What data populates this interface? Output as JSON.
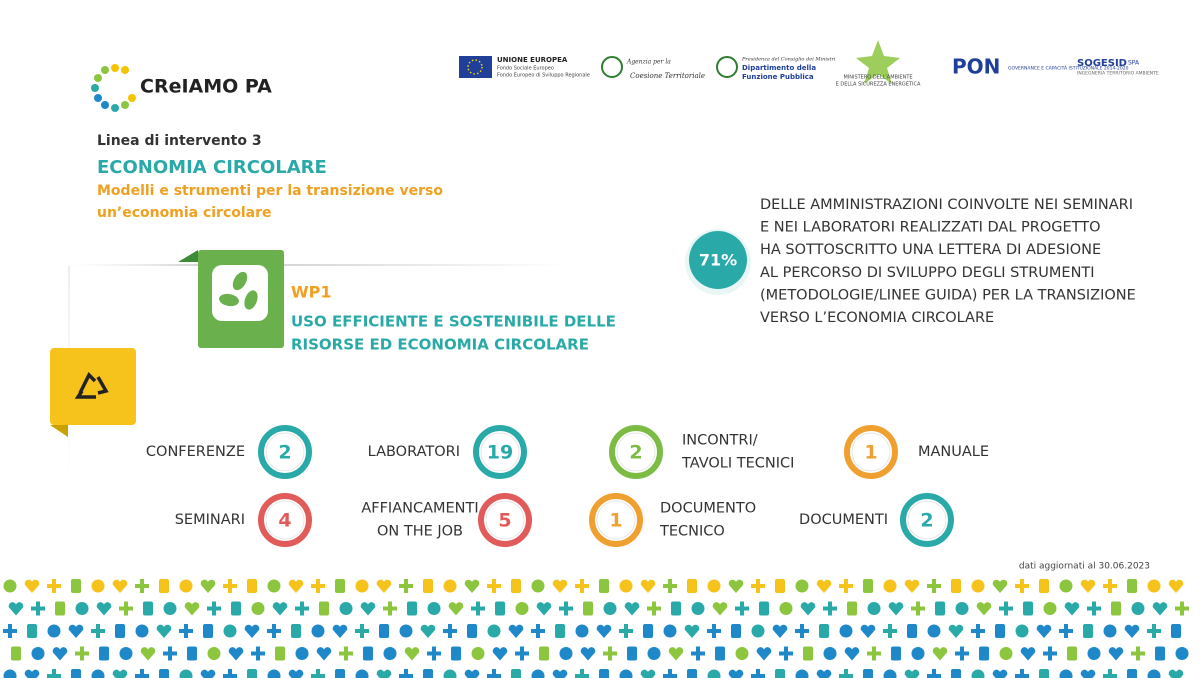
{
  "brand": {
    "name": "CReIAMO PA"
  },
  "logos": {
    "eu_title": "UNIONE EUROPEA",
    "eu_line1": "Fondo Sociale Europeo",
    "eu_line2": "Fondo Europeo di Sviluppo Regionale",
    "agency_line1": "Agenzia per la",
    "agency_line2": "Coesione Territoriale",
    "dfp_line1": "Presidenza del Consiglio dei Ministri",
    "dfp_line2": "Dipartimento della",
    "dfp_line3": "Funzione Pubblica",
    "mase_line1": "MINISTERO DELL'AMBIENTE",
    "mase_line2": "E DELLA SICUREZZA ENERGETICA",
    "pon": "PON",
    "pon_sub": "GOVERNANCE E CAPACITÀ ISTITUZIONALE 2014-2020",
    "sogesid": "SOGESID",
    "sogesid_spa": "SPA",
    "sogesid_sub": "INGEGNERIA TERRITORIO AMBIENTE"
  },
  "header": {
    "line": "Linea di intervento 3",
    "title": "ECONOMIA CIRCOLARE",
    "subtitle": [
      "Modelli e strumenti per la transizione verso",
      "un’economia circolare"
    ]
  },
  "work_package": {
    "code": "WP1",
    "title": [
      "USO EFFICIENTE E SOSTENIBILE DELLE",
      "RISORSE ED ECONOMIA CIRCOLARE"
    ]
  },
  "highlight": {
    "value": "71%",
    "text": [
      "DELLE AMMINISTRAZIONI COINVOLTE NEI SEMINARI",
      "E NEI LABORATORI REALIZZATI DAL PROGETTO",
      "HA SOTTOSCRITTO UNA LETTERA DI ADESIONE",
      "AL PERCORSO DI SVILUPPO DEGLI STRUMENTI",
      "(METODOLOGIE/LINEE GUIDA) PER LA TRANSIZIONE",
      "VERSO L’ECONOMIA CIRCOLARE"
    ]
  },
  "counters": [
    {
      "label": [
        "CONFERENZE"
      ],
      "value": "2"
    },
    {
      "label": [
        "LABORATORI"
      ],
      "value": "19"
    },
    {
      "label": [
        "INCONTRI/",
        "TAVOLI TECNICI"
      ],
      "value": "2"
    },
    {
      "label": [
        "MANUALE"
      ],
      "value": "1"
    },
    {
      "label": [
        "SEMINARI"
      ],
      "value": "4"
    },
    {
      "label": [
        "AFFIANCAMENTI",
        "ON THE JOB"
      ],
      "value": "5"
    },
    {
      "label": [
        "DOCUMENTO",
        "TECNICO"
      ],
      "value": "1"
    },
    {
      "label": [
        "DOCUMENTI"
      ],
      "value": "2"
    }
  ],
  "footer": {
    "note": "dati aggiornati al 30.06.2023"
  }
}
